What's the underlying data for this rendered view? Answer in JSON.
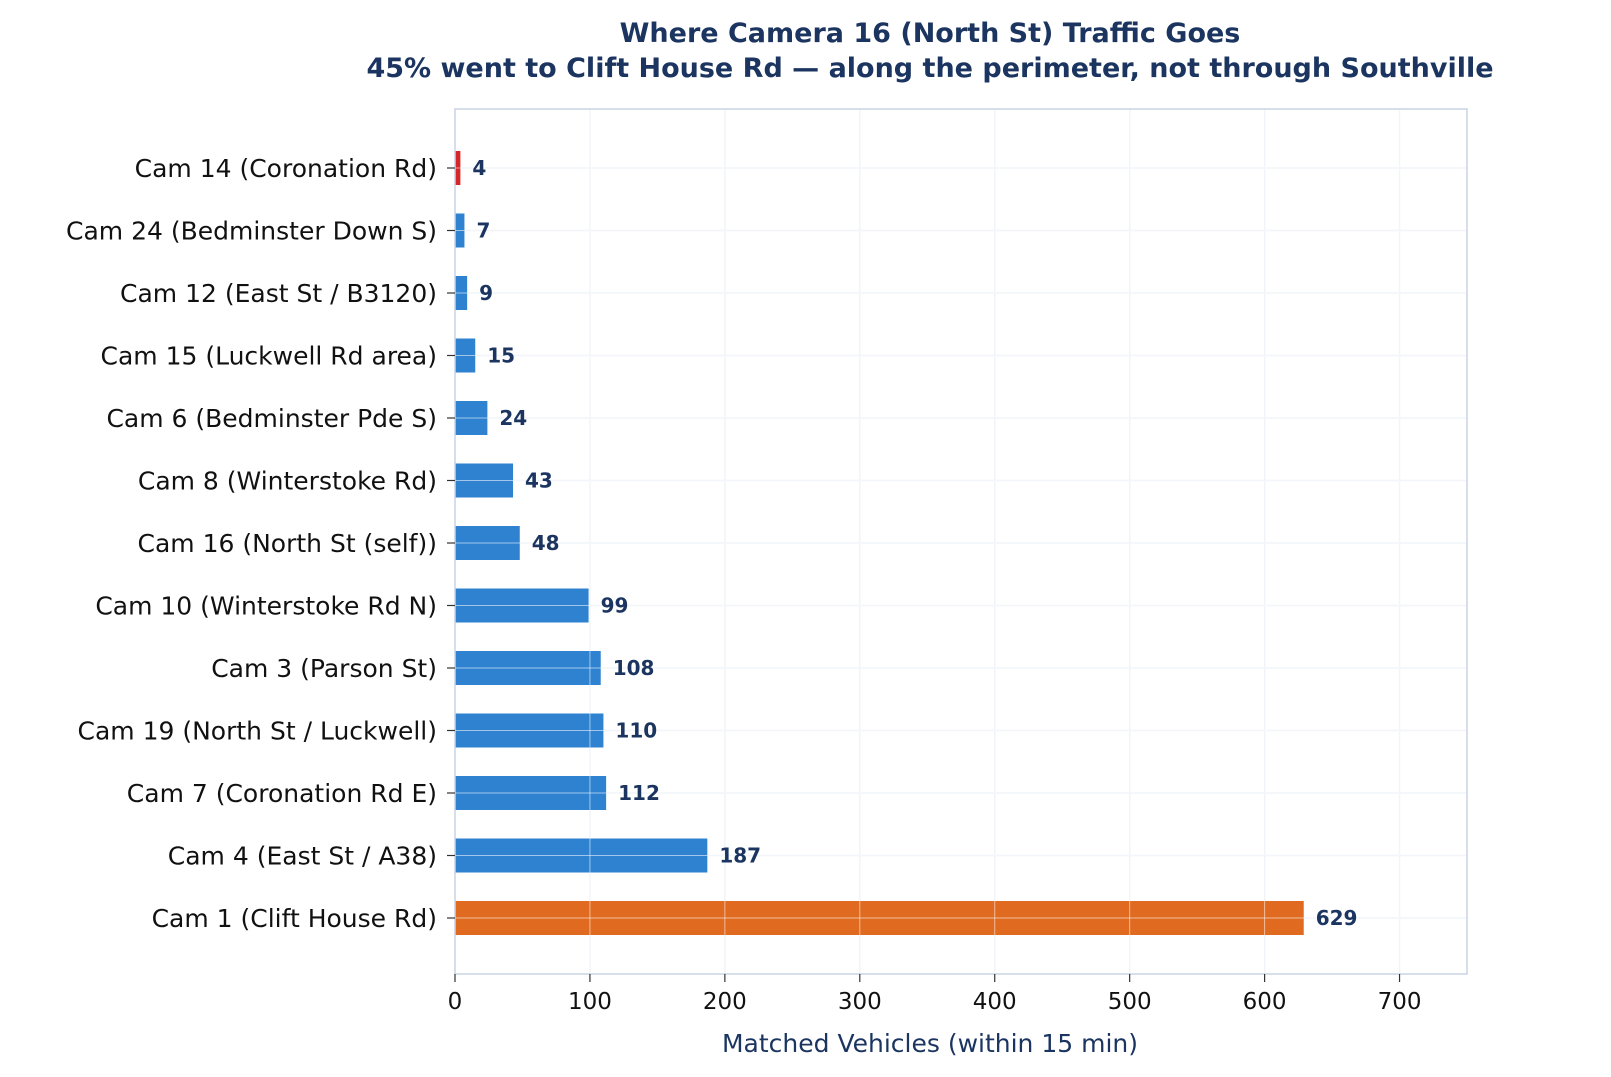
{
  "chart_data": {
    "type": "bar",
    "orientation": "horizontal",
    "title": "Where Camera 16 (North St) Traffic Goes",
    "subtitle": "45% went to Clift House Rd — along the perimeter, not through Southville",
    "xlabel": "Matched Vehicles (within 15 min)",
    "ylabel": "",
    "xlim": [
      0,
      750
    ],
    "xticks": [
      0,
      100,
      200,
      300,
      400,
      500,
      600,
      700
    ],
    "grid": true,
    "categories": [
      "Cam 14 (Coronation Rd)",
      "Cam 24 (Bedminster Down S)",
      "Cam 12 (East St / B3120)",
      "Cam 15 (Luckwell Rd area)",
      "Cam 6 (Bedminster Pde S)",
      "Cam 8 (Winterstoke Rd)",
      "Cam 16 (North St (self))",
      "Cam 10 (Winterstoke Rd N)",
      "Cam 3 (Parson St)",
      "Cam 19 (North St / Luckwell)",
      "Cam 7 (Coronation Rd E)",
      "Cam 4 (East St / A38)",
      "Cam 1 (Clift House Rd)"
    ],
    "values": [
      4,
      7,
      9,
      15,
      24,
      43,
      48,
      99,
      108,
      110,
      112,
      187,
      629
    ],
    "bar_colors": [
      "#d62728",
      "#2f82d0",
      "#2f82d0",
      "#2f82d0",
      "#2f82d0",
      "#2f82d0",
      "#2f82d0",
      "#2f82d0",
      "#2f82d0",
      "#2f82d0",
      "#2f82d0",
      "#2f82d0",
      "#e06b20"
    ]
  },
  "colors": {
    "title": "#1b3560",
    "grid": "#e3e9f1",
    "axis": "#c9d4e3"
  }
}
